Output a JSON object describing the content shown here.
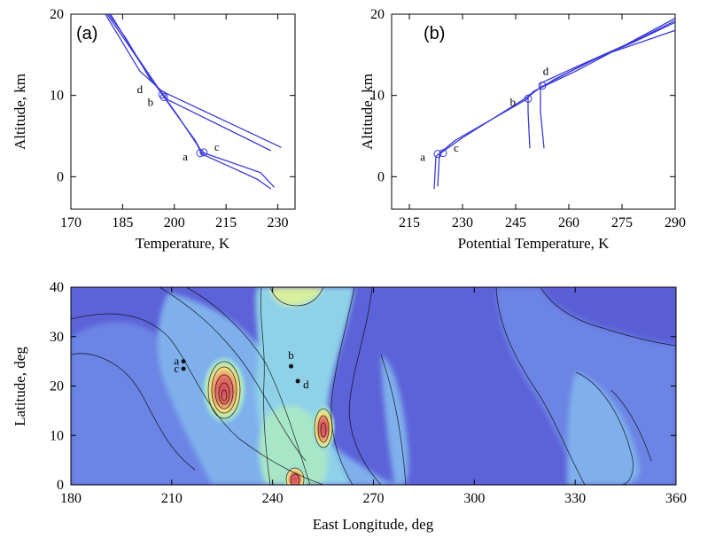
{
  "chart_data": [
    {
      "type": "line",
      "panel_label": "(a)",
      "xlabel": "Temperature, K",
      "ylabel": "Altitude, km",
      "xlim": [
        170,
        235
      ],
      "ylim": [
        -4,
        20
      ],
      "xticks": [
        170,
        185,
        200,
        215,
        230
      ],
      "yticks": [
        0,
        10,
        20
      ],
      "line_color": "#3a3ad8",
      "series": [
        {
          "points": [
            [
              180,
              20
            ],
            [
              185,
              16.5
            ],
            [
              190,
              13
            ],
            [
              196.5,
              10.5
            ],
            [
              231,
              3.6
            ]
          ]
        },
        {
          "points": [
            [
              181,
              20
            ],
            [
              186,
              17
            ],
            [
              193,
              12
            ],
            [
              198,
              9.5
            ],
            [
              228,
              3.2
            ]
          ]
        },
        {
          "points": [
            [
              180.5,
              20
            ],
            [
              187,
              16
            ],
            [
              195,
              11
            ],
            [
              200,
              8
            ],
            [
              206,
              4.5
            ],
            [
              208,
              3
            ],
            [
              225,
              0.5
            ],
            [
              229,
              -1.3
            ]
          ]
        },
        {
          "points": [
            [
              181.5,
              20
            ],
            [
              188,
              15.5
            ],
            [
              196,
              10.5
            ],
            [
              201,
              7.5
            ],
            [
              206.5,
              4
            ],
            [
              208,
              2.8
            ],
            [
              224,
              -0.3
            ],
            [
              228,
              -1.5
            ]
          ]
        }
      ],
      "points": [
        {
          "label": "a",
          "x": 207.5,
          "y": 2.9,
          "label_side": "left"
        },
        {
          "label": "c",
          "x": 208.5,
          "y": 3.0,
          "label_side": "right"
        },
        {
          "label": "d",
          "x": 196.5,
          "y": 10.1,
          "label_side": "left-high"
        },
        {
          "label": "b",
          "x": 197.0,
          "y": 9.8,
          "label_side": "left-low"
        }
      ]
    },
    {
      "type": "line",
      "panel_label": "(b)",
      "xlabel": "Potential Temperature, K",
      "ylabel": "Altitude, km",
      "xlim": [
        210,
        290
      ],
      "ylim": [
        -4,
        20
      ],
      "xticks": [
        215,
        230,
        245,
        260,
        275,
        290
      ],
      "yticks": [
        0,
        10,
        20
      ],
      "line_color": "#3a3ad8",
      "series": [
        {
          "points": [
            [
              222,
              -1.5
            ],
            [
              222.5,
              2.5
            ],
            [
              228,
              4.5
            ],
            [
              248,
              9.5
            ],
            [
              250,
              10.5
            ],
            [
              262,
              13
            ],
            [
              275,
              16
            ],
            [
              290,
              19.5
            ]
          ]
        },
        {
          "points": [
            [
              223,
              -1.2
            ],
            [
              223.5,
              2.8
            ],
            [
              230,
              4.8
            ],
            [
              249,
              10
            ],
            [
              252,
              11
            ],
            [
              265,
              14
            ],
            [
              278,
              16.5
            ],
            [
              290,
              19
            ]
          ]
        },
        {
          "points": [
            [
              249,
              3.5
            ],
            [
              248.5,
              8
            ],
            [
              248.5,
              10
            ],
            [
              256,
              12
            ],
            [
              270,
              15
            ],
            [
              290,
              18
            ]
          ]
        },
        {
          "points": [
            [
              253,
              3.5
            ],
            [
              252,
              8
            ],
            [
              252,
              11.5
            ],
            [
              262,
              13.5
            ],
            [
              280,
              17
            ],
            [
              290,
              19.2
            ]
          ]
        }
      ],
      "points": [
        {
          "label": "a",
          "x": 223.0,
          "y": 2.8,
          "label_side": "left"
        },
        {
          "label": "c",
          "x": 224.5,
          "y": 2.9,
          "label_side": "right"
        },
        {
          "label": "b",
          "x": 248.5,
          "y": 9.6,
          "label_side": "left"
        },
        {
          "label": "d",
          "x": 252.5,
          "y": 11.2,
          "label_side": "up"
        }
      ]
    },
    {
      "type": "heatmap",
      "xlabel": "East Longitude, deg",
      "ylabel": "Latitude, deg",
      "xlim": [
        180,
        360
      ],
      "ylim": [
        0,
        40
      ],
      "xticks": [
        180,
        210,
        240,
        270,
        300,
        330,
        360
      ],
      "yticks": [
        0,
        10,
        20,
        30,
        40
      ],
      "colormap": [
        "#5a5fd6",
        "#6c84e4",
        "#7fb0ec",
        "#8fd2e8",
        "#a8e6c8",
        "#d8ee9c",
        "#f2de80",
        "#f0a868",
        "#e47060",
        "#d84a60"
      ],
      "points": [
        {
          "label": "a",
          "lon": 213.5,
          "lat": 25.0
        },
        {
          "label": "c",
          "lon": 213.5,
          "lat": 23.5
        },
        {
          "label": "b",
          "lon": 245.5,
          "lat": 24.0
        },
        {
          "label": "d",
          "lon": 247.5,
          "lat": 21.0
        }
      ]
    }
  ]
}
